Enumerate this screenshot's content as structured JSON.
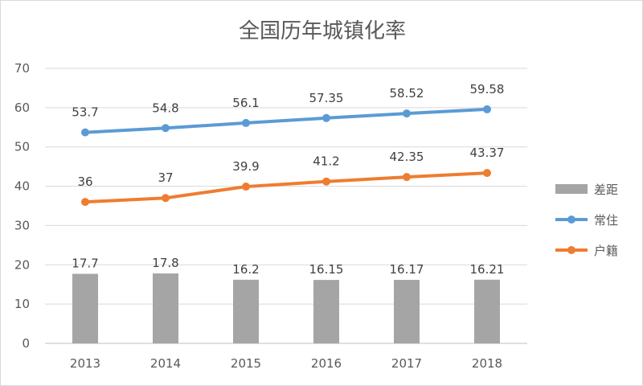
{
  "chart_data": {
    "type": "bar",
    "title": "全国历年城镇化率",
    "xlabel": "",
    "ylabel": "",
    "categories": [
      "2013",
      "2014",
      "2015",
      "2016",
      "2017",
      "2018"
    ],
    "ylim": [
      0,
      70
    ],
    "yticks": [
      0,
      10,
      20,
      30,
      40,
      50,
      60,
      70
    ],
    "grid": true,
    "legend_position": "right",
    "series": [
      {
        "name": "差距",
        "type": "bar",
        "color": "#a5a5a5",
        "values": [
          17.7,
          17.8,
          16.2,
          16.15,
          16.17,
          16.21
        ],
        "labels": [
          "17.7",
          "17.8",
          "16.2",
          "16.15",
          "16.17",
          "16.21"
        ]
      },
      {
        "name": "常住",
        "type": "line",
        "color": "#5b9bd5",
        "values": [
          53.7,
          54.8,
          56.1,
          57.35,
          58.52,
          59.58
        ],
        "labels": [
          "53.7",
          "54.8",
          "56.1",
          "57.35",
          "58.52",
          "59.58"
        ]
      },
      {
        "name": "户籍",
        "type": "line",
        "color": "#ed7d31",
        "values": [
          36,
          37,
          39.9,
          41.2,
          42.35,
          43.37
        ],
        "labels": [
          "36",
          "37",
          "39.9",
          "41.2",
          "42.35",
          "43.37"
        ]
      }
    ]
  }
}
